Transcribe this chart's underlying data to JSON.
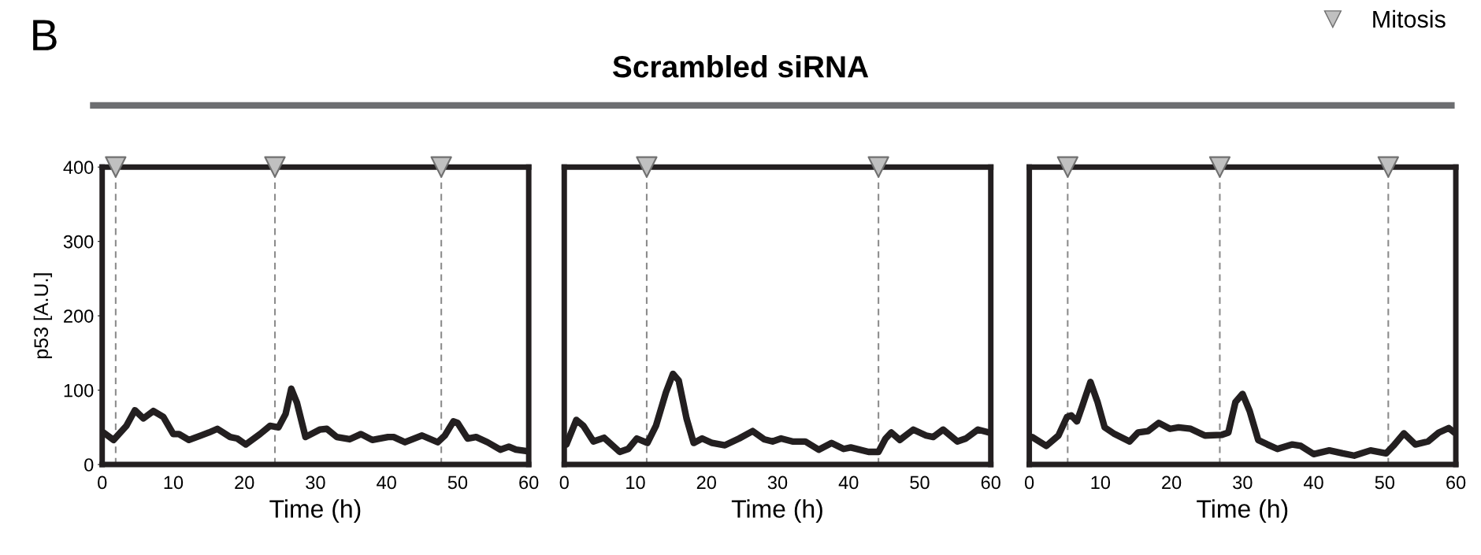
{
  "chart_data": [
    {
      "type": "line",
      "annotations": [
        "B"
      ],
      "xlabel": "Time (h)",
      "ylabel": "p53 [A.U.]",
      "xlim": [
        0,
        60
      ],
      "xticks": [
        0,
        10,
        20,
        30,
        40,
        50,
        60
      ],
      "ylim": [
        0,
        400
      ],
      "yticks": [
        0,
        100,
        200,
        300,
        400
      ],
      "grid": false,
      "legend": false,
      "series": [
        {
          "color": "#231f20",
          "line_style": "solid",
          "marker": "none",
          "x": [
            0.2,
            1.6,
            3.4,
            4.6,
            5.8,
            7.2,
            8.6,
            10,
            10.8,
            12.2,
            15,
            16.2,
            18,
            19,
            20.2,
            22.2,
            23.6,
            24.8,
            25.8,
            26.6,
            27.4,
            28.6,
            30.6,
            31.6,
            33,
            34.8,
            36.4,
            38,
            40.2,
            41,
            42.6,
            45,
            47.2,
            48.2,
            49.4,
            50,
            51.4,
            52.6,
            54.2,
            56,
            57.2,
            58.2,
            59.8
          ],
          "values": [
            43,
            33,
            52,
            73,
            62,
            72,
            64,
            41,
            41,
            33,
            43,
            48,
            37,
            35,
            27,
            41,
            52,
            50,
            68,
            102,
            83,
            37,
            47,
            48,
            37,
            34,
            41,
            33,
            37,
            37,
            30,
            39,
            30,
            39,
            58,
            56,
            35,
            37,
            30,
            20,
            24,
            20,
            18
          ]
        },
        {
          "type": "scatter",
          "color": "#c0c0c0",
          "marker": "triangle",
          "x": [
            1.9,
            24.3,
            47.7
          ],
          "values": [
            400,
            400,
            400
          ]
        }
      ],
      "ref_lines": [
        {
          "axis": "x",
          "value": 1.9,
          "color": "#8c8c8c",
          "line_style": "dashed"
        },
        {
          "axis": "x",
          "value": 24.3,
          "color": "#8c8c8c",
          "line_style": "dashed"
        },
        {
          "axis": "x",
          "value": 47.7,
          "color": "#8c8c8c",
          "line_style": "dashed"
        }
      ]
    },
    {
      "type": "line",
      "title": "Scrambled siRNA",
      "xlabel": "Time (h)",
      "xlim": [
        0,
        60
      ],
      "xticks": [
        0,
        10,
        20,
        30,
        40,
        50,
        60
      ],
      "ylim": [
        0,
        400
      ],
      "yticks": [
        0,
        100,
        200,
        300,
        400
      ],
      "tick_labels": "x",
      "grid": false,
      "legend": false,
      "series": [
        {
          "color": "#231f20",
          "line_style": "solid",
          "marker": "none",
          "x": [
            0.3,
            1.7,
            2.7,
            4.1,
            5.6,
            7.8,
            9,
            10.2,
            11.7,
            12.9,
            14.3,
            15.3,
            16.1,
            17.2,
            18.2,
            19.4,
            20.8,
            22.6,
            24.6,
            26.5,
            28.1,
            29.3,
            30.5,
            32.1,
            33.9,
            35.8,
            37.6,
            39.3,
            40.3,
            42.8,
            44.2,
            45.2,
            46,
            47.2,
            49.1,
            50.9,
            51.9,
            53.3,
            55.3,
            56.5,
            58.2,
            59.8
          ],
          "values": [
            27,
            60,
            52,
            31,
            36,
            17,
            21,
            35,
            29,
            52,
            97,
            122,
            113,
            62,
            29,
            35,
            29,
            26,
            35,
            45,
            34,
            31,
            35,
            31,
            31,
            20,
            29,
            21,
            23,
            17,
            17,
            35,
            43,
            33,
            47,
            39,
            37,
            47,
            31,
            35,
            47,
            43
          ]
        },
        {
          "type": "scatter",
          "color": "#c0c0c0",
          "marker": "triangle",
          "x": [
            11.6,
            44.2
          ],
          "values": [
            400,
            400
          ]
        }
      ],
      "ref_lines": [
        {
          "axis": "x",
          "value": 11.6,
          "color": "#8c8c8c",
          "line_style": "dashed"
        },
        {
          "axis": "x",
          "value": 44.2,
          "color": "#8c8c8c",
          "line_style": "dashed"
        }
      ]
    },
    {
      "type": "line",
      "xlabel": "Time (h)",
      "xlim": [
        0,
        60
      ],
      "xticks": [
        0,
        10,
        20,
        30,
        40,
        50,
        60
      ],
      "ylim": [
        0,
        400
      ],
      "yticks": [
        0,
        100,
        200,
        300,
        400
      ],
      "tick_labels": "x",
      "grid": false,
      "legend": "top right",
      "series": [
        {
          "color": "#231f20",
          "line_style": "solid",
          "marker": "none",
          "x": [
            0.4,
            2.4,
            4.1,
            5.3,
            5.9,
            6.7,
            7.5,
            8.6,
            9.6,
            10.6,
            12,
            14.1,
            15.3,
            16.7,
            18.2,
            19.8,
            21,
            22.7,
            24.7,
            27.1,
            28,
            29,
            30,
            31,
            32.2,
            33.5,
            34.9,
            37,
            38.2,
            40,
            42.2,
            44.1,
            45.7,
            48,
            50.2,
            51.2,
            52.7,
            54.3,
            56.1,
            57.6,
            59,
            59.8
          ],
          "values": [
            37,
            25,
            39,
            64,
            66,
            58,
            80,
            111,
            84,
            50,
            41,
            31,
            43,
            45,
            56,
            48,
            50,
            48,
            39,
            40,
            43,
            84,
            95,
            72,
            33,
            27,
            21,
            27,
            25,
            14,
            19,
            15,
            12,
            19,
            15,
            25,
            42,
            27,
            31,
            43,
            49,
            43
          ]
        },
        {
          "type": "scatter",
          "name": "Mitosis",
          "color": "#c0c0c0",
          "marker": "triangle",
          "x": [
            5.4,
            26.8,
            50.5
          ],
          "values": [
            400,
            400,
            400
          ]
        }
      ],
      "ref_lines": [
        {
          "axis": "x",
          "value": 5.4,
          "color": "#8c8c8c",
          "line_style": "dashed"
        },
        {
          "axis": "x",
          "value": 26.8,
          "color": "#8c8c8c",
          "line_style": "dashed"
        },
        {
          "axis": "x",
          "value": 50.5,
          "color": "#8c8c8c",
          "line_style": "dashed"
        }
      ]
    }
  ]
}
